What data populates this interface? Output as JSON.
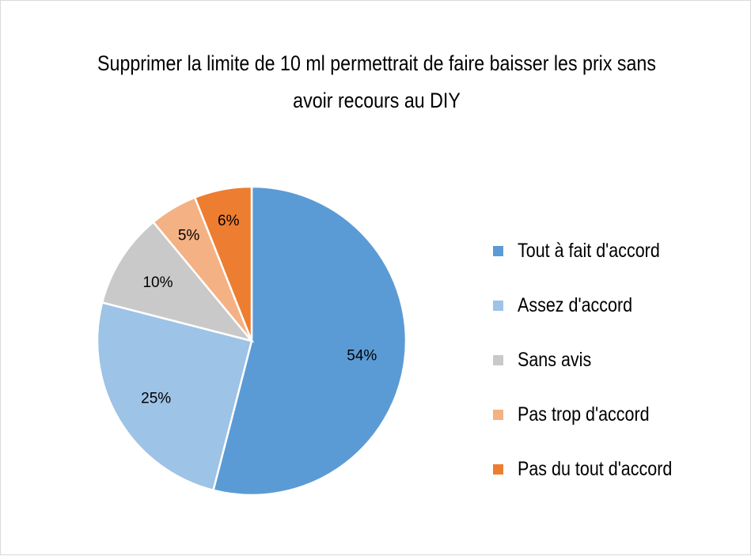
{
  "chart_data": {
    "type": "pie",
    "title": "Supprimer la limite de 10 ml permettrait de faire baisser les prix sans avoir recours au DIY",
    "categories": [
      "Tout à fait d'accord",
      "Assez d'accord",
      "Sans avis",
      "Pas trop d'accord",
      "Pas du tout d'accord"
    ],
    "values": [
      54,
      25,
      10,
      5,
      6
    ],
    "data_labels": [
      "54%",
      "25%",
      "10%",
      "5%",
      "6%"
    ],
    "colors": [
      "#5b9bd5",
      "#9dc3e6",
      "#c9c9c9",
      "#f4b183",
      "#ed7d31"
    ],
    "legend_position": "right"
  }
}
